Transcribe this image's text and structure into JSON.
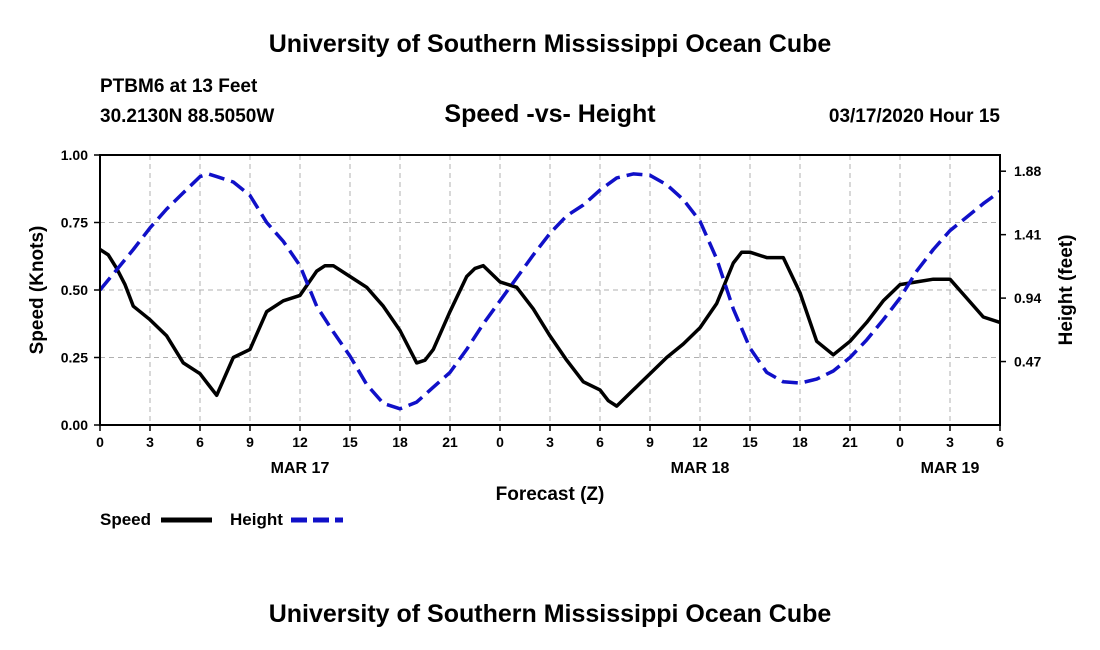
{
  "header": {
    "title": "University of Southern Mississippi Ocean Cube",
    "station": "PTBM6 at 13 Feet",
    "coordinates": "30.2130N 88.5050W",
    "subtitle": "Speed -vs- Height",
    "datetime": "03/17/2020 Hour 15"
  },
  "footer": {
    "title": "University of Southern Mississippi Ocean Cube"
  },
  "colors": {
    "speed": "#000000",
    "height": "#1010c8",
    "grid": "#b0b0b0"
  },
  "chart_data": {
    "type": "line",
    "title": "Speed -vs- Height",
    "xlabel": "Forecast (Z)",
    "ylabel": "Speed (Knots)",
    "y2label": "Height (feet)",
    "xlim": [
      0,
      54
    ],
    "ylim": [
      0,
      1.0
    ],
    "y2lim": [
      0,
      2.0
    ],
    "x_ticks": [
      0,
      3,
      6,
      9,
      12,
      15,
      18,
      21,
      24,
      27,
      30,
      33,
      36,
      39,
      42,
      45,
      48,
      51,
      54
    ],
    "x_tick_labels": [
      "0",
      "3",
      "6",
      "9",
      "12",
      "15",
      "18",
      "21",
      "0",
      "3",
      "6",
      "9",
      "12",
      "15",
      "18",
      "21",
      "0",
      "3",
      "6"
    ],
    "date_labels": [
      {
        "x": 12,
        "label": "MAR 17"
      },
      {
        "x": 36,
        "label": "MAR 18"
      },
      {
        "x": 51,
        "label": "MAR 19"
      }
    ],
    "y_ticks": [
      0.0,
      0.25,
      0.5,
      0.75,
      1.0
    ],
    "y_tick_labels": [
      "0.00",
      "0.25",
      "0.50",
      "0.75",
      "1.00"
    ],
    "y2_ticks": [
      0.47,
      0.94,
      1.41,
      1.88
    ],
    "y2_tick_labels": [
      "0.47",
      "0.94",
      "1.41",
      "1.88"
    ],
    "grid": true,
    "legend": {
      "position": "bottom-left",
      "entries": [
        "Speed",
        "Height"
      ]
    },
    "series": [
      {
        "name": "Speed",
        "axis": "left",
        "style": "solid",
        "x": [
          0,
          0.5,
          1,
          1.5,
          2,
          3,
          4,
          5,
          6,
          6.5,
          7,
          8,
          9,
          10,
          11,
          12,
          13,
          13.5,
          14,
          15,
          16,
          17,
          18,
          19,
          19.5,
          20,
          21,
          22,
          22.5,
          23,
          24,
          25,
          26,
          27,
          28,
          29,
          30,
          30.5,
          31,
          32,
          33,
          34,
          35,
          36,
          37,
          38,
          38.5,
          39,
          40,
          41,
          42,
          43,
          44,
          45,
          46,
          47,
          48,
          49,
          50,
          51,
          52,
          53,
          54
        ],
        "y": [
          0.65,
          0.63,
          0.58,
          0.52,
          0.44,
          0.39,
          0.33,
          0.23,
          0.19,
          0.15,
          0.11,
          0.25,
          0.28,
          0.42,
          0.46,
          0.48,
          0.57,
          0.59,
          0.59,
          0.55,
          0.51,
          0.44,
          0.35,
          0.23,
          0.24,
          0.28,
          0.42,
          0.55,
          0.58,
          0.59,
          0.53,
          0.51,
          0.43,
          0.33,
          0.24,
          0.16,
          0.13,
          0.09,
          0.07,
          0.13,
          0.19,
          0.25,
          0.3,
          0.36,
          0.45,
          0.6,
          0.64,
          0.64,
          0.62,
          0.62,
          0.49,
          0.31,
          0.26,
          0.31,
          0.38,
          0.46,
          0.52,
          0.53,
          0.54,
          0.54,
          0.47,
          0.4,
          0.38
        ]
      },
      {
        "name": "Height",
        "axis": "right",
        "style": "dashed",
        "x": [
          0,
          1,
          2,
          3,
          4,
          5,
          6,
          6.5,
          7,
          8,
          9,
          10,
          11,
          12,
          13,
          14,
          15,
          16,
          17,
          18,
          19,
          20,
          21,
          22,
          23,
          24,
          25,
          26,
          27,
          28,
          29,
          30,
          31,
          32,
          33,
          34,
          35,
          36,
          37,
          38,
          39,
          40,
          41,
          42,
          43,
          44,
          45,
          46,
          47,
          48,
          49,
          50,
          51,
          52,
          53,
          54
        ],
        "y": [
          1.0,
          1.15,
          1.3,
          1.46,
          1.6,
          1.72,
          1.84,
          1.86,
          1.84,
          1.8,
          1.7,
          1.5,
          1.36,
          1.18,
          0.88,
          0.69,
          0.51,
          0.3,
          0.16,
          0.12,
          0.17,
          0.28,
          0.39,
          0.56,
          0.75,
          0.92,
          1.09,
          1.26,
          1.42,
          1.55,
          1.63,
          1.74,
          1.83,
          1.86,
          1.85,
          1.78,
          1.67,
          1.51,
          1.23,
          0.86,
          0.57,
          0.39,
          0.32,
          0.31,
          0.34,
          0.4,
          0.5,
          0.63,
          0.78,
          0.94,
          1.14,
          1.3,
          1.44,
          1.54,
          1.64,
          1.73
        ]
      }
    ]
  }
}
